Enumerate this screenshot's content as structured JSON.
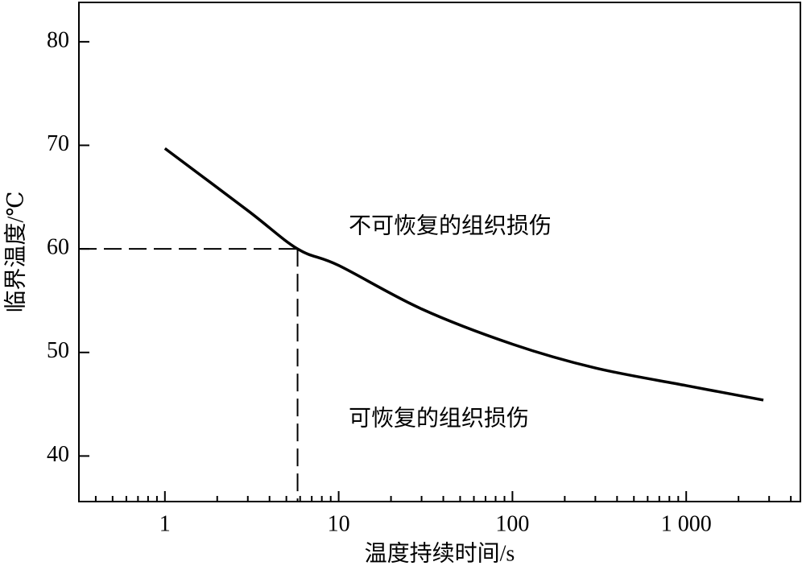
{
  "chart_data": {
    "type": "line",
    "x_label": "温度持续时间/s",
    "y_label": "临界温度/℃",
    "x": [
      1,
      3,
      5.8,
      10,
      30,
      100,
      300,
      1000,
      2780
    ],
    "values": [
      69.7,
      63.7,
      60,
      58.4,
      54.2,
      50.8,
      48.5,
      46.8,
      45.4
    ],
    "color": "#000000",
    "xlim": [
      0.32,
      4540
    ],
    "ylim": [
      35.6,
      83.8
    ],
    "xticks": [
      1,
      10,
      100,
      {
        "value": 1000,
        "label": "1 000"
      }
    ],
    "yticks": [
      40,
      50,
      60,
      70,
      80
    ],
    "xscale": "log",
    "reference": {
      "x": 5.8,
      "y": 60
    },
    "annotations": [
      "不可恢复的组织损伤",
      "可恢复的组织损伤"
    ]
  }
}
